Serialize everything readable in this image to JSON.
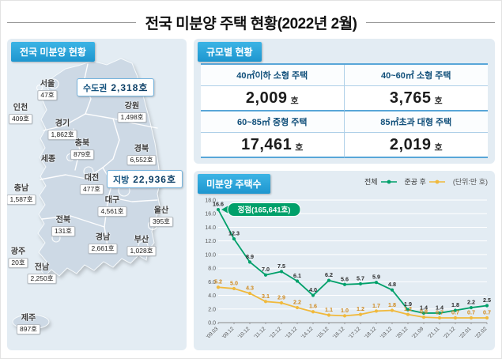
{
  "title": "전국 미분양 주택 현황(2022년 2월)",
  "map_panel": {
    "header": "전국 미분양 현황",
    "highlights": [
      {
        "label": "수도권",
        "value": "2,318호"
      },
      {
        "label": "지방",
        "value": "22,936호"
      }
    ],
    "regions": [
      {
        "name": "서울",
        "value": "47호"
      },
      {
        "name": "인천",
        "value": "409호"
      },
      {
        "name": "강원",
        "value": "1,498호"
      },
      {
        "name": "경기",
        "value": "1,862호"
      },
      {
        "name": "충북",
        "value": "879호"
      },
      {
        "name": "경북",
        "value": "6,552호"
      },
      {
        "name": "세종",
        "value": ""
      },
      {
        "name": "대전",
        "value": "477호"
      },
      {
        "name": "충남",
        "value": "1,587호"
      },
      {
        "name": "대구",
        "value": "4,561호"
      },
      {
        "name": "울산",
        "value": "395호"
      },
      {
        "name": "전북",
        "value": "131호"
      },
      {
        "name": "경남",
        "value": "2,661호"
      },
      {
        "name": "부산",
        "value": "1,028호"
      },
      {
        "name": "광주",
        "value": "20호"
      },
      {
        "name": "전남",
        "value": "2,250호"
      },
      {
        "name": "제주",
        "value": "897호"
      }
    ]
  },
  "scale_panel": {
    "header": "규모별 현황",
    "cells": [
      {
        "label": "40㎡이하 소형 주택",
        "value": "2,009",
        "unit": "호"
      },
      {
        "label": "40~60㎡ 소형 주택",
        "value": "3,765",
        "unit": "호"
      },
      {
        "label": "60~85㎡ 중형 주택",
        "value": "17,461",
        "unit": "호"
      },
      {
        "label": "85㎡초과 대형 주택",
        "value": "2,019",
        "unit": "호"
      }
    ]
  },
  "chart_panel": {
    "header": "미분양 주택수",
    "unit_note": "(단위:만 호)"
  },
  "chart_data": {
    "type": "line",
    "title": "미분양 주택수",
    "unit_note": "(단위:만 호)",
    "x": [
      "'09.03",
      "'09.12",
      "'10.12",
      "'11.12",
      "'12.12",
      "'13.12",
      "'14.12",
      "'15.12",
      "'16.12",
      "'17.12",
      "'18.12",
      "'19.12",
      "'20.12",
      "'21.09",
      "'21.11",
      "'21.12",
      "'22.01",
      "'22.02"
    ],
    "ylim": [
      0,
      18
    ],
    "ytick_step": 2,
    "grid": true,
    "legend_position": "top-right",
    "series": [
      {
        "name": "전체",
        "color": "#00a06a",
        "label_color": "#2b2b2b",
        "values": [
          16.6,
          12.3,
          8.9,
          7.0,
          7.5,
          6.1,
          4.0,
          6.2,
          5.6,
          5.7,
          5.9,
          4.8,
          1.9,
          1.4,
          1.4,
          1.8,
          2.2,
          2.5
        ]
      },
      {
        "name": "준공 후",
        "color": "#f0b93c",
        "label_color": "#d08a1f",
        "values": [
          5.2,
          5.0,
          4.3,
          3.1,
          2.9,
          2.2,
          1.6,
          1.1,
          1.0,
          1.2,
          1.7,
          1.8,
          1.2,
          0.8,
          0.7,
          0.7,
          0.7,
          0.7
        ]
      }
    ],
    "annotation": {
      "text": "정점(165,641호)",
      "target_index": 0,
      "color": "#00a06a"
    }
  }
}
